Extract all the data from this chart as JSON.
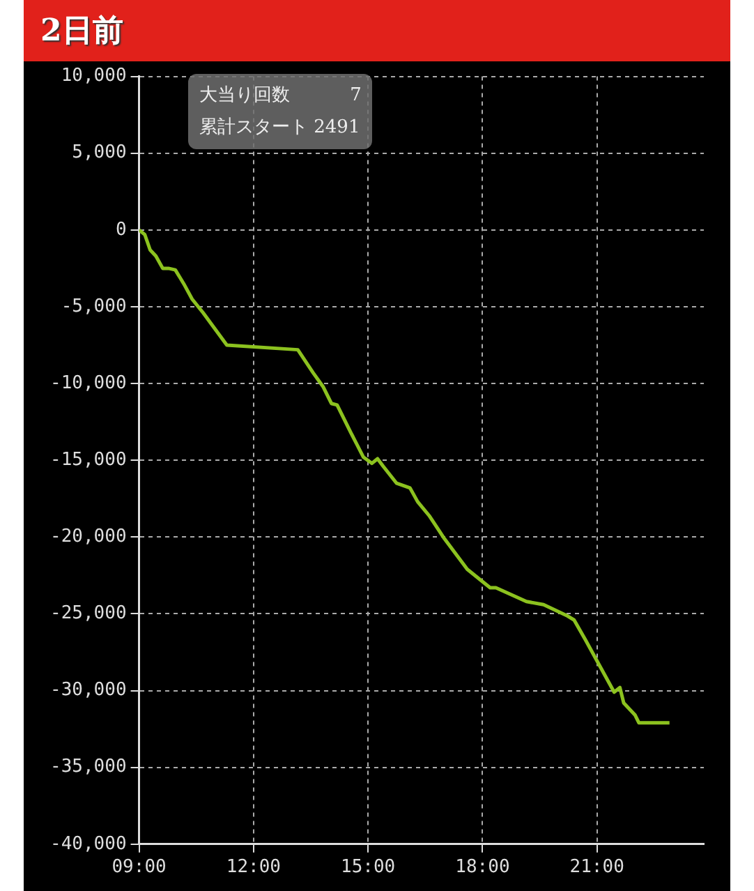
{
  "chart_data": {
    "type": "line",
    "title": "2日前",
    "annotations": [
      "大当り回数　　　 7",
      "累計スタート 2491"
    ],
    "series": [
      {
        "color": "#8cc21f",
        "x": [
          9,
          9.15,
          9.29,
          9.44,
          9.62,
          9.77,
          9.95,
          10.17,
          10.39,
          10.68,
          11.3,
          13.16,
          13.56,
          13.82,
          14.04,
          14.19,
          14.55,
          14.88,
          15.1,
          15.25,
          15.4,
          15.75,
          16.1,
          16.3,
          16.6,
          17.0,
          17.6,
          17.95,
          18.2,
          18.35,
          19.15,
          19.6,
          20.2,
          20.4,
          20.7,
          21.45,
          21.6,
          21.7,
          22.0,
          22.1,
          22.9
        ],
        "values": [
          0,
          -300,
          -1300,
          -1700,
          -2500,
          -2500,
          -2600,
          -3500,
          -4500,
          -5400,
          -7500,
          -7800,
          -9300,
          -10200,
          -11300,
          -11400,
          -13200,
          -14800,
          -15200,
          -14900,
          -15400,
          -16500,
          -16800,
          -17700,
          -18600,
          -20100,
          -22100,
          -22800,
          -23300,
          -23300,
          -24200,
          -24400,
          -25100,
          -25400,
          -26700,
          -30100,
          -29800,
          -30800,
          -31600,
          -32100,
          -32100
        ]
      }
    ],
    "xlim": [
      9,
      23.8
    ],
    "xticks": [
      {
        "value": 9,
        "label": "09:00"
      },
      {
        "value": 12,
        "label": "12:00"
      },
      {
        "value": 15,
        "label": "15:00"
      },
      {
        "value": 18,
        "label": "18:00"
      },
      {
        "value": 21,
        "label": "21:00"
      }
    ],
    "ylim": [
      -40000,
      10000
    ],
    "yticks": [
      {
        "value": -40000,
        "label": "-40,000"
      },
      {
        "value": -35000,
        "label": "-35,000"
      },
      {
        "value": -30000,
        "label": "-30,000"
      },
      {
        "value": -25000,
        "label": "-25,000"
      },
      {
        "value": -20000,
        "label": "-20,000"
      },
      {
        "value": -15000,
        "label": "-15,000"
      },
      {
        "value": -10000,
        "label": "-10,000"
      },
      {
        "value": -5000,
        "label": "-5,000"
      },
      0,
      {
        "value": 5000,
        "label": "5,000"
      },
      {
        "value": 10000,
        "label": "10,000"
      }
    ],
    "grid": true,
    "legend": false,
    "marker": "none",
    "line_style": "solid"
  }
}
